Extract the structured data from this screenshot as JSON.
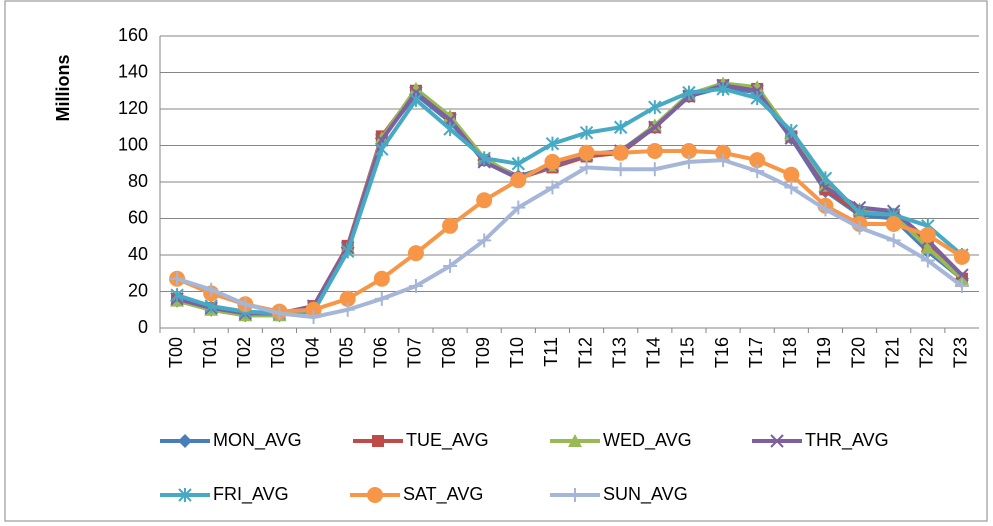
{
  "chart_data": {
    "type": "line",
    "y_label": "Millions",
    "categories": [
      "T00",
      "T01",
      "T02",
      "T03",
      "T04",
      "T05",
      "T06",
      "T07",
      "T08",
      "T09",
      "T10",
      "T11",
      "T12",
      "T13",
      "T14",
      "T15",
      "T16",
      "T17",
      "T18",
      "T19",
      "T20",
      "T21",
      "T22",
      "T23"
    ],
    "ylim": [
      0,
      160
    ],
    "yticks": [
      0,
      20,
      40,
      60,
      80,
      100,
      120,
      140,
      160
    ],
    "grid": true,
    "series": [
      {
        "name": "MON_AVG",
        "color": "#4a7ebb",
        "marker": "diamond",
        "values": [
          15,
          10,
          7,
          7,
          10,
          44,
          104,
          128,
          113,
          92,
          83,
          89,
          95,
          96,
          110,
          127,
          132,
          129,
          104,
          75,
          62,
          60,
          42,
          27
        ]
      },
      {
        "name": "TUE_AVG",
        "color": "#be4b48",
        "marker": "square",
        "values": [
          16,
          11,
          8,
          8,
          12,
          45,
          105,
          130,
          115,
          92,
          82,
          88,
          94,
          96,
          110,
          127,
          133,
          131,
          105,
          76,
          63,
          62,
          45,
          27
        ]
      },
      {
        "name": "WED_AVG",
        "color": "#98b954",
        "marker": "triangle",
        "values": [
          15,
          10,
          7,
          7,
          11,
          44,
          104,
          131,
          116,
          93,
          82,
          89,
          95,
          97,
          111,
          128,
          134,
          132,
          106,
          78,
          65,
          62,
          44,
          27
        ]
      },
      {
        "name": "THR_AVG",
        "color": "#7d60a0",
        "marker": "x",
        "values": [
          16,
          11,
          8,
          8,
          12,
          44,
          103,
          129,
          114,
          91,
          82,
          89,
          95,
          97,
          110,
          127,
          133,
          130,
          104,
          77,
          66,
          64,
          48,
          29
        ]
      },
      {
        "name": "FRI_AVG",
        "color": "#46aac5",
        "marker": "star",
        "values": [
          18,
          12,
          9,
          8,
          9,
          42,
          98,
          125,
          109,
          93,
          90,
          101,
          107,
          110,
          121,
          129,
          131,
          126,
          108,
          82,
          63,
          62,
          56,
          40
        ]
      },
      {
        "name": "SAT_AVG",
        "color": "#f79646",
        "marker": "circle",
        "values": [
          27,
          19,
          13,
          9,
          10,
          16,
          27,
          41,
          56,
          70,
          81,
          91,
          96,
          96,
          97,
          97,
          96,
          92,
          84,
          67,
          57,
          57,
          51,
          39
        ]
      },
      {
        "name": "SUN_AVG",
        "color": "#a5b6d8",
        "marker": "plus",
        "values": [
          27,
          21,
          13,
          8,
          6,
          10,
          16,
          23,
          34,
          48,
          66,
          77,
          88,
          87,
          87,
          91,
          92,
          86,
          77,
          65,
          55,
          48,
          37,
          23
        ]
      }
    ]
  }
}
